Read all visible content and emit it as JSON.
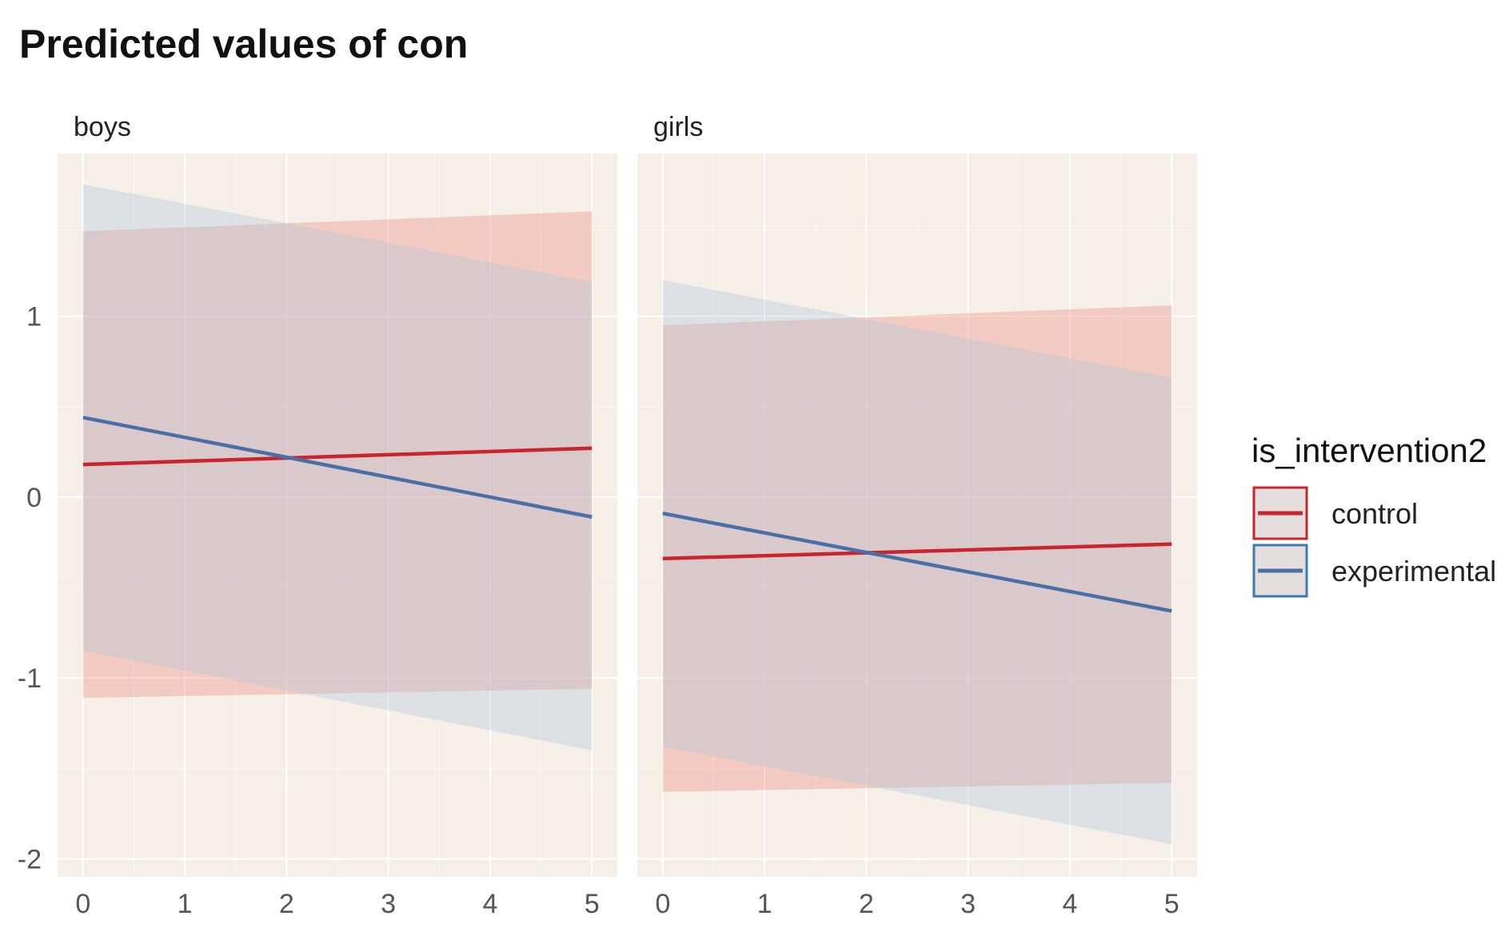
{
  "chart_data": {
    "type": "line",
    "title": "Predicted values of con",
    "xlabel": "",
    "ylabel": "",
    "x": [
      0,
      1,
      2,
      3,
      4,
      5
    ],
    "x_ticks": [
      "0",
      "1",
      "2",
      "3",
      "4",
      "5"
    ],
    "y_ticks": [
      "1",
      "0",
      "-1",
      "-2"
    ],
    "xlim": [
      -0.25,
      5.25
    ],
    "ylim": [
      -2.1,
      1.9
    ],
    "grid": true,
    "legend_title": "is_intervention2",
    "legend_position": "right",
    "facets": [
      {
        "label": "boys",
        "series": [
          {
            "name": "control",
            "color": "#C8252F",
            "fill": "#F08E80",
            "x": [
              0,
              5
            ],
            "values": [
              0.18,
              0.27
            ],
            "lower": [
              -1.11,
              -1.06
            ],
            "upper": [
              1.47,
              1.58
            ]
          },
          {
            "name": "experimental",
            "color": "#4A6FA5",
            "fill": "#B3C9DC",
            "x": [
              0,
              5
            ],
            "values": [
              0.44,
              -0.11
            ],
            "lower": [
              -0.85,
              -1.4
            ],
            "upper": [
              1.73,
              1.19
            ]
          }
        ]
      },
      {
        "label": "girls",
        "series": [
          {
            "name": "control",
            "color": "#C8252F",
            "fill": "#F08E80",
            "x": [
              0,
              5
            ],
            "values": [
              -0.34,
              -0.26
            ],
            "lower": [
              -1.63,
              -1.58
            ],
            "upper": [
              0.95,
              1.06
            ]
          },
          {
            "name": "experimental",
            "color": "#4A6FA5",
            "fill": "#B3C9DC",
            "x": [
              0,
              5
            ],
            "values": [
              -0.09,
              -0.63
            ],
            "lower": [
              -1.38,
              -1.92
            ],
            "upper": [
              1.2,
              0.66
            ]
          }
        ]
      }
    ],
    "legend": [
      {
        "label": "control",
        "color": "#C8252F",
        "box_border": "#C8252F"
      },
      {
        "label": "experimental",
        "color": "#4A6FA5",
        "box_border": "#3D78AE"
      }
    ]
  }
}
